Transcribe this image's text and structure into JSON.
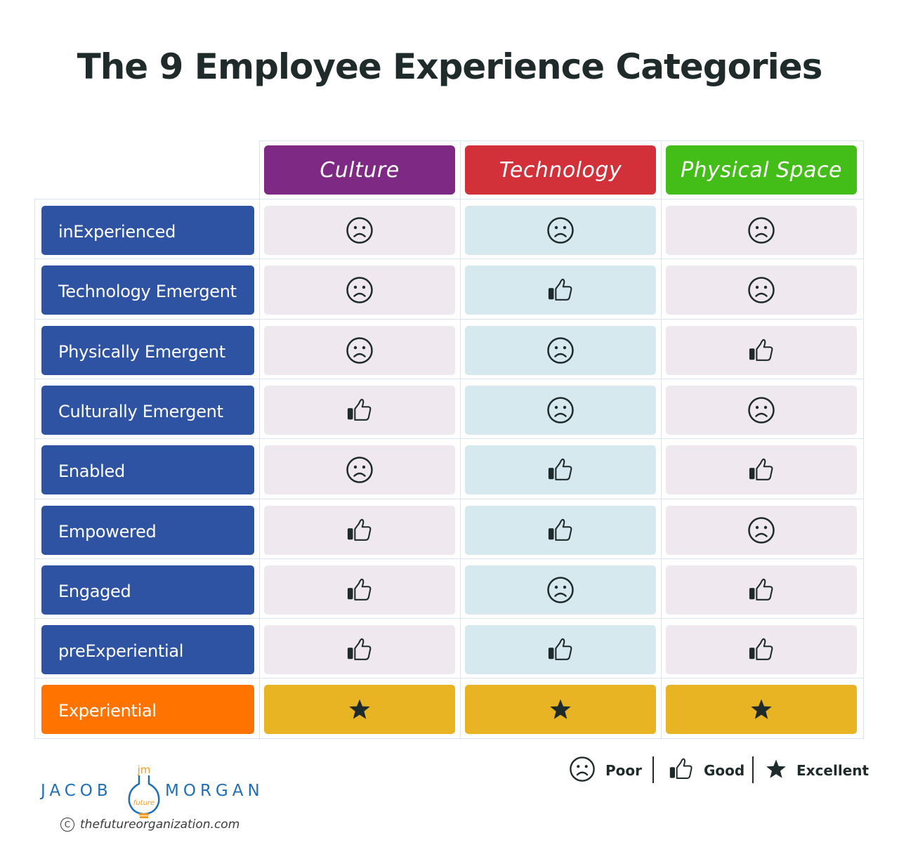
{
  "title": "The 9 Employee Experience Categories",
  "columns": [
    {
      "label": "Culture",
      "color": "#7e2a84"
    },
    {
      "label": "Technology",
      "color": "#d2313a"
    },
    {
      "label": "Physical Space",
      "color": "#43bd18"
    }
  ],
  "rows": [
    {
      "label": "inExperienced",
      "ratings": [
        "poor",
        "poor",
        "poor"
      ]
    },
    {
      "label": "Technology Emergent",
      "ratings": [
        "poor",
        "good",
        "poor"
      ]
    },
    {
      "label": "Physically Emergent",
      "ratings": [
        "poor",
        "poor",
        "good"
      ]
    },
    {
      "label": "Culturally Emergent",
      "ratings": [
        "good",
        "poor",
        "poor"
      ]
    },
    {
      "label": "Enabled",
      "ratings": [
        "poor",
        "good",
        "good"
      ]
    },
    {
      "label": "Empowered",
      "ratings": [
        "good",
        "good",
        "poor"
      ]
    },
    {
      "label": "Engaged",
      "ratings": [
        "good",
        "poor",
        "good"
      ]
    },
    {
      "label": "preExperiential",
      "ratings": [
        "good",
        "good",
        "good"
      ]
    },
    {
      "label": "Experiential",
      "ratings": [
        "excellent",
        "excellent",
        "excellent"
      ]
    }
  ],
  "icons": {
    "poor": "sad-face-icon",
    "good": "thumbs-up-icon",
    "excellent": "star-icon"
  },
  "legend": {
    "poor": "Poor",
    "good": "Good",
    "excellent": "Excellent"
  },
  "logo": {
    "left": "JACOB",
    "monogram": "jm",
    "tag": "future",
    "right": "MORGAN"
  },
  "website": {
    "copyright_symbol": "C",
    "url": "thefutureorganization.com"
  }
}
